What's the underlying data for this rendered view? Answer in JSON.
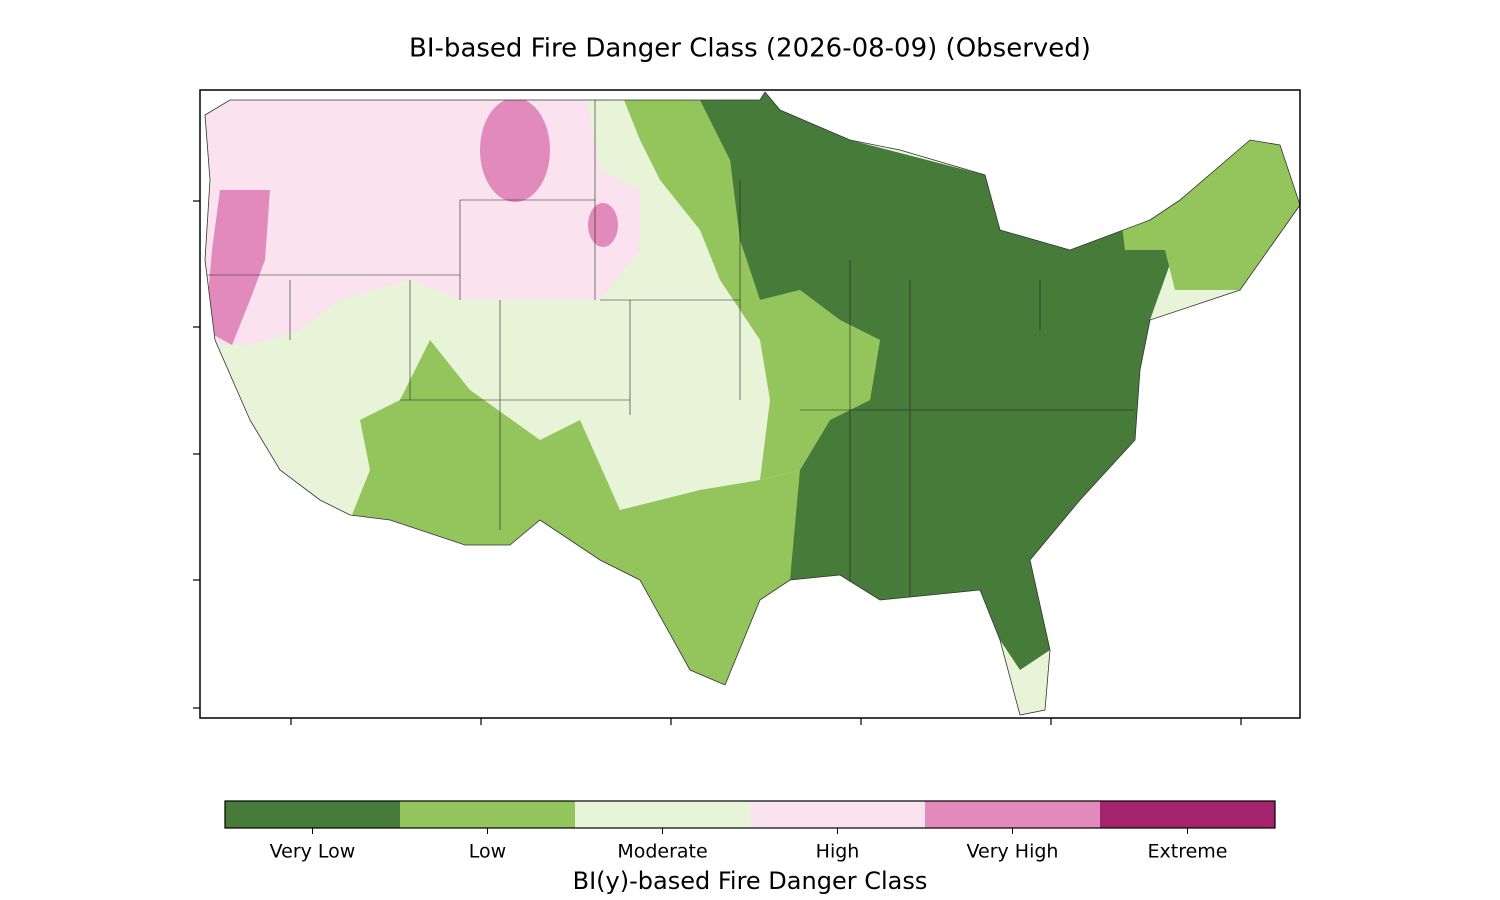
{
  "title": "BI-based Fire Danger Class (2026-08-09) (Observed)",
  "colorbar": {
    "label": "BI(y)-based Fire Danger Class",
    "classes": [
      {
        "name": "Very Low",
        "color": "#467b3a"
      },
      {
        "name": "Low",
        "color": "#93c55c"
      },
      {
        "name": "Moderate",
        "color": "#e8f4d8"
      },
      {
        "name": "High",
        "color": "#fbe2ef"
      },
      {
        "name": "Very High",
        "color": "#e28abb"
      },
      {
        "name": "Extreme",
        "color": "#a3246d"
      }
    ]
  }
}
